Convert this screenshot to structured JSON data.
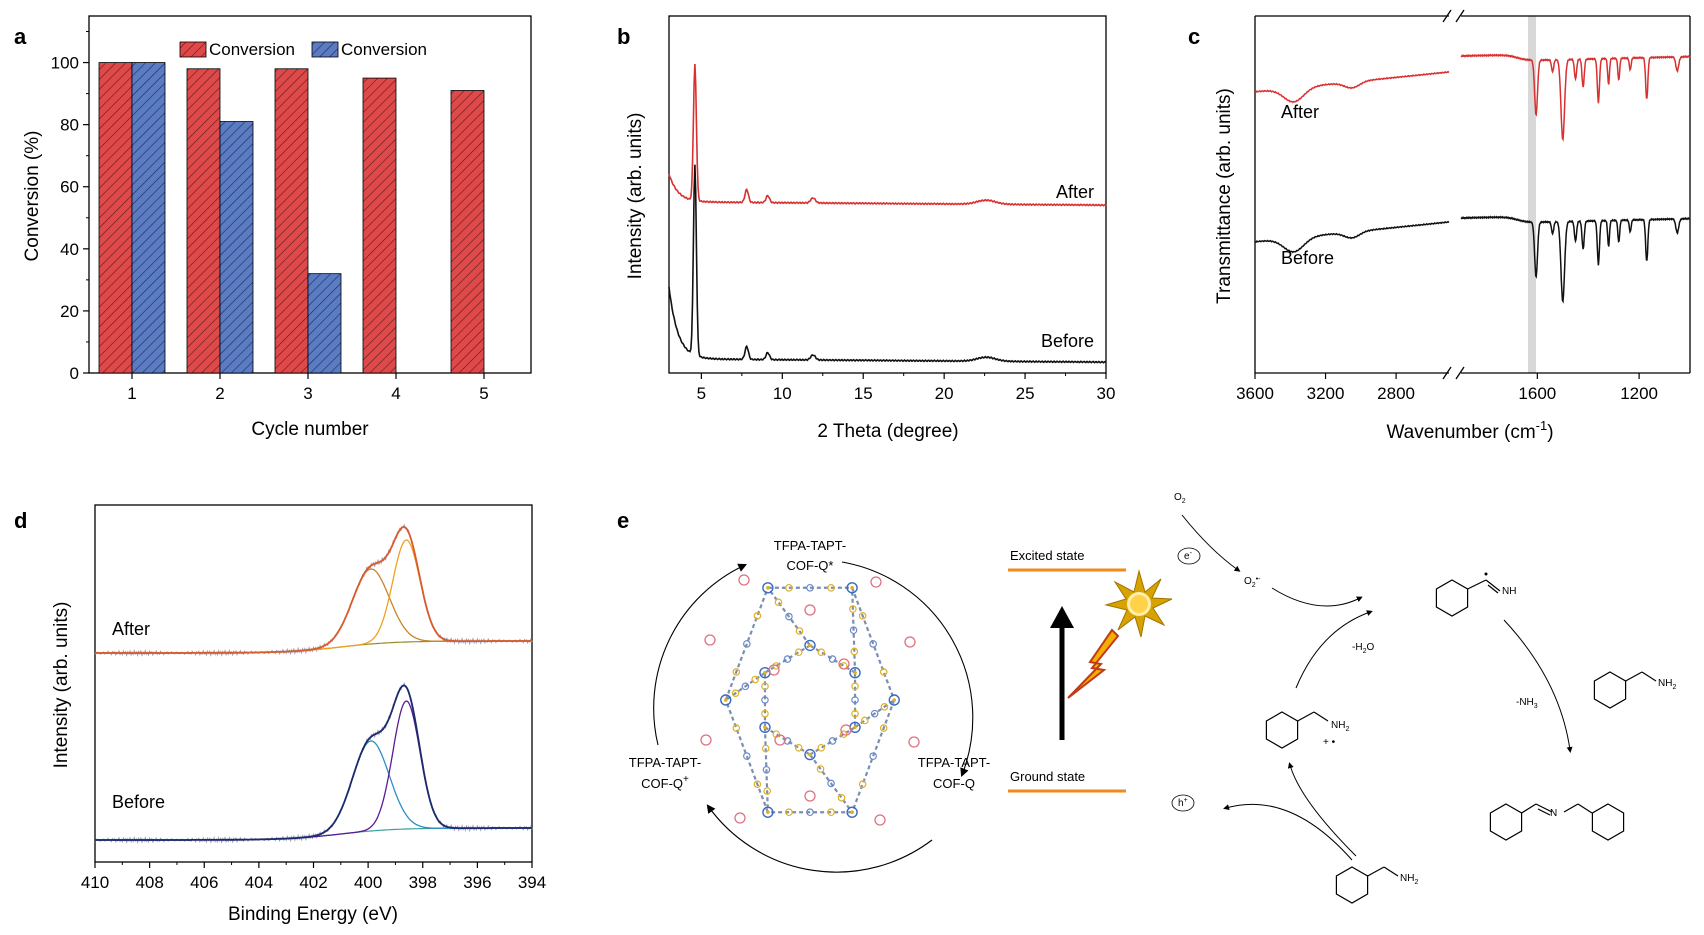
{
  "panels": {
    "a": {
      "letter": "a",
      "chart_data": {
        "type": "bar",
        "categories": [
          "1",
          "2",
          "3",
          "4",
          "5"
        ],
        "series": [
          {
            "name": "Conversion",
            "color": "#e0494a",
            "values": [
              100,
              98,
              98,
              95,
              91
            ]
          },
          {
            "name": "Conversion",
            "color": "#5b7bc2",
            "values": [
              100,
              81,
              32,
              null,
              null
            ]
          }
        ],
        "xlabel": "Cycle number",
        "ylabel": "Conversion (%)",
        "ylim": [
          0,
          115
        ],
        "yticks": [
          "0",
          "20",
          "40",
          "60",
          "80",
          "100"
        ],
        "hatched": true,
        "legend_position": "top-center"
      }
    },
    "b": {
      "letter": "b",
      "chart_data": {
        "type": "line",
        "xlabel": "2 Theta (degree)",
        "ylabel": "Intensity (arb. units)",
        "xlim": [
          3,
          30
        ],
        "xticks": [
          "5",
          "10",
          "15",
          "20",
          "25",
          "30"
        ],
        "y_ticks_shown": false,
        "series": [
          {
            "name": "After",
            "color": "#d93030",
            "peaks_2theta": [
              4.6,
              7.8,
              9.1,
              11.9,
              22.6
            ]
          },
          {
            "name": "Before",
            "color": "#111111",
            "peaks_2theta": [
              4.6,
              7.8,
              9.1,
              11.9,
              22.6
            ]
          }
        ]
      }
    },
    "c": {
      "letter": "c",
      "chart_data": {
        "type": "line",
        "xlabel": "Wavenumber (cm",
        "xlabel_superscript": "-1",
        "xlabel_end": ")",
        "ylabel": "Transmittance (arb. units)",
        "xlim": [
          3600,
          1000
        ],
        "axis_break": [
          2500,
          1900
        ],
        "xticks": [
          "3600",
          "3200",
          "2800",
          "1600",
          "1200"
        ],
        "highlight_band": [
          1640,
          1600
        ],
        "series": [
          {
            "name": "After",
            "color": "#d93030"
          },
          {
            "name": "Before",
            "color": "#111111"
          }
        ]
      }
    },
    "d": {
      "letter": "d",
      "chart_data": {
        "type": "line",
        "xlabel": "Binding Energy (eV)",
        "ylabel": "Intensity (arb. units)",
        "xlim": [
          410,
          394
        ],
        "xticks": [
          "410",
          "408",
          "406",
          "404",
          "402",
          "400",
          "398",
          "396",
          "394"
        ],
        "series": [
          {
            "name": "After",
            "color": "#d95a2b",
            "fit_peaks_eV": [
              399.9,
              398.6
            ],
            "fit_colors": [
              "#c8842a",
              "#f0a020"
            ]
          },
          {
            "name": "Before",
            "color": "#1b2a6b",
            "fit_peaks_eV": [
              399.9,
              398.6
            ],
            "fit_colors": [
              "#2a8fc8",
              "#5a1a9a"
            ]
          }
        ]
      }
    },
    "e": {
      "letter": "e",
      "cycle": {
        "top": "TFPA-TAPT-",
        "top2": "COF-Q*",
        "left": "TFPA-TAPT-",
        "left2": "COF-Q",
        "left2_sup": "+",
        "right": "TFPA-TAPT-",
        "right2": "COF-Q"
      },
      "energy": {
        "excited": "Excited state",
        "ground": "Ground state"
      },
      "mechanism": {
        "o2": "O",
        "o2_sub": "2",
        "electron": "e",
        "electron_sup": "-",
        "superoxide": "O",
        "superoxide_sub": "2",
        "superoxide_sup": "•-",
        "hole": "h",
        "hole_sup": "+",
        "minus_water": "-H",
        "minus_water_sub": "2",
        "minus_water_end": "O",
        "minus_ammonia": "-NH",
        "minus_ammonia_sub": "3",
        "imine_nh": "NH",
        "amine_nh2": "NH",
        "amine_nh2_sub": "2",
        "radical_cation": "+ •"
      }
    }
  }
}
